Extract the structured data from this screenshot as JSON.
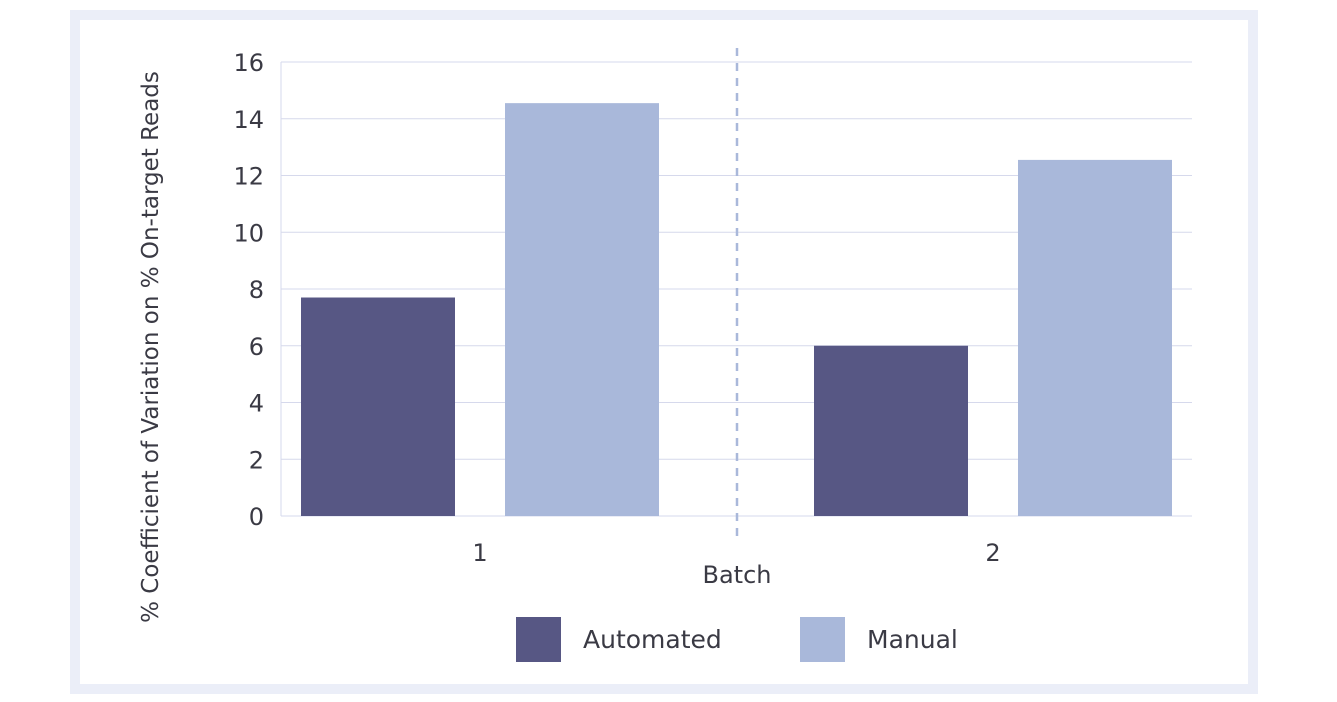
{
  "chart_data": {
    "type": "bar",
    "categories": [
      "1",
      "2"
    ],
    "series": [
      {
        "name": "Automated",
        "values": [
          7.7,
          6.0
        ]
      },
      {
        "name": "Manual",
        "values": [
          14.55,
          12.55
        ]
      }
    ],
    "title": "",
    "xlabel": "Batch",
    "ylabel": "% Coefficient of Variation on % On-target Reads",
    "ylim": [
      0,
      16
    ],
    "yticks": [
      "0",
      "2",
      "4",
      "6",
      "8",
      "10",
      "12",
      "14",
      "16"
    ],
    "grid": true,
    "legend_position": "bottom",
    "colors": {
      "Automated": "#575784",
      "Manual": "#a9b8da",
      "grid": "#d6d9ec",
      "divider": "#a9b8da"
    }
  }
}
